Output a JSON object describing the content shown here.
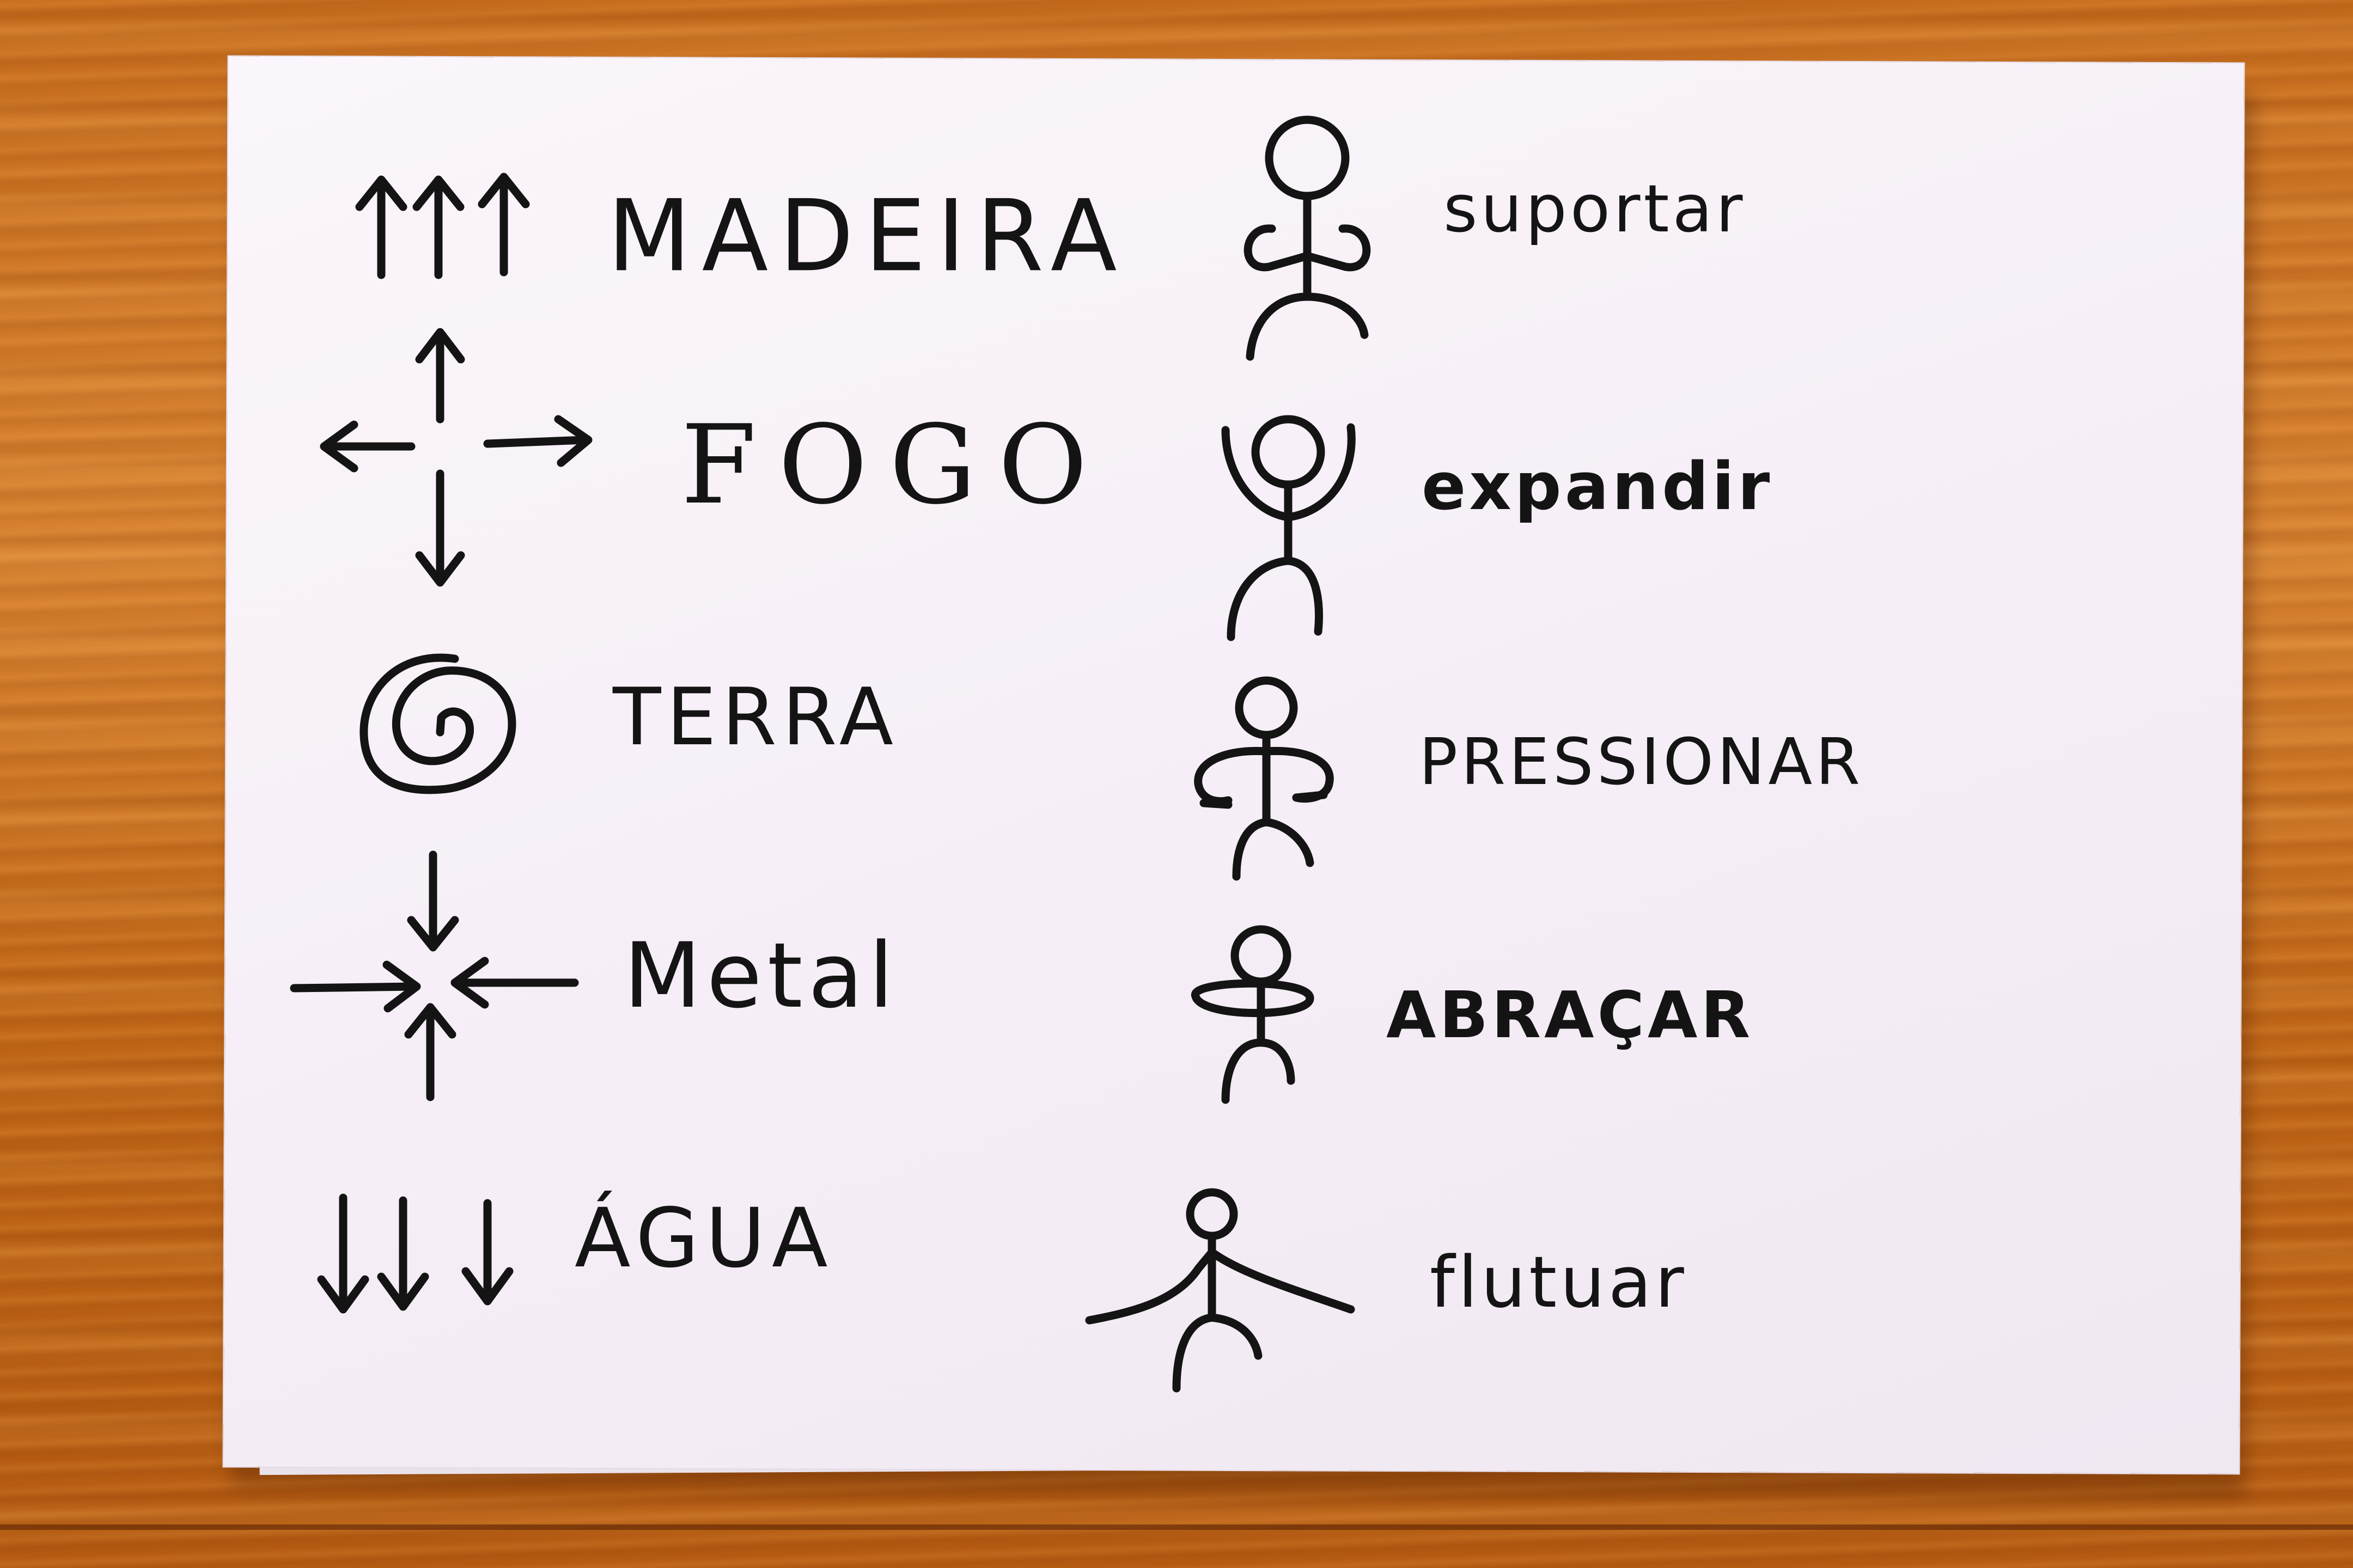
{
  "elements": [
    {
      "id": "madeira",
      "label": "MADEIRA"
    },
    {
      "id": "fogo",
      "label": "FOGO"
    },
    {
      "id": "terra",
      "label": "TERRA"
    },
    {
      "id": "metal",
      "label": "Metal"
    },
    {
      "id": "agua",
      "label": "ÁGUA"
    }
  ],
  "actions": [
    {
      "id": "suportar",
      "label": "suportar"
    },
    {
      "id": "expandir",
      "label": "expandir"
    },
    {
      "id": "pressionar",
      "label": "PRESSIONAR"
    },
    {
      "id": "abracar",
      "label": "ABRAÇAR"
    },
    {
      "id": "flutuar",
      "label": "flutuar"
    }
  ],
  "colors": {
    "ink": "#141414",
    "paper": "#f6eff7",
    "table_wood": "#c8701c"
  }
}
